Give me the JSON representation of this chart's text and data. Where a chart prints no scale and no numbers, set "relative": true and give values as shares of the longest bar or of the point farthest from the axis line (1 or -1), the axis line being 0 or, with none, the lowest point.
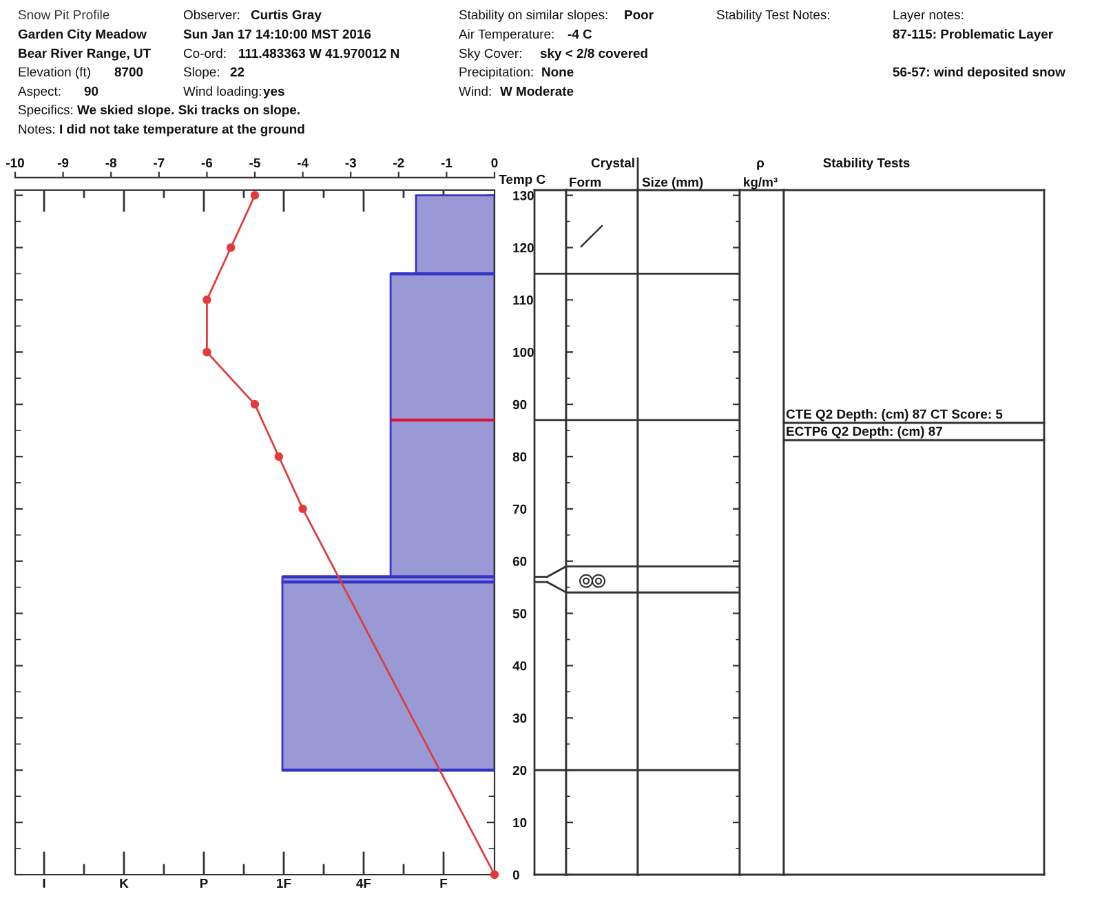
{
  "chart_data": [
    {
      "type": "other",
      "title": "Snow Pit Profile",
      "annotations": [
        "Observer:",
        "Curtis Gray",
        "Stability on similar slopes:",
        "Poor",
        "Stability Test Notes:",
        "Layer notes:",
        "Garden City Meadow",
        "Sun Jan 17 14:10:00 MST 2016",
        "Air Temperature:",
        "-4 C",
        "87-115: Problematic Layer",
        "Bear River Range, UT",
        "Co-ord:",
        "111.483363 W 41.970012 N",
        "Sky Cover:",
        "sky < 2/8 covered",
        "Elevation (ft)",
        "8700",
        "Slope:",
        "22",
        "Precipitation:",
        "None",
        "56-57: wind deposited snow",
        "Aspect:",
        "90",
        "Wind loading:",
        "yes",
        "Wind:",
        "W Moderate",
        "Specifics:",
        "We skied slope. Ski tracks on slope.",
        "Notes:",
        "I did not take temperature at the ground"
      ]
    },
    {
      "type": "bar",
      "orientation": "horizontal",
      "relative": true,
      "x": [
        38,
        56.5,
        86,
        122.5
      ],
      "values": [
        1.0,
        1.0,
        0.49,
        0.37
      ],
      "color": "#9999d5",
      "ylim": [
        0,
        131
      ],
      "yticks": [
        0,
        {
          "value": 5,
          "label": null
        },
        10,
        {
          "value": 15,
          "label": null
        },
        20,
        {
          "value": 25,
          "label": null
        },
        30,
        {
          "value": 35,
          "label": null
        },
        40,
        {
          "value": 45,
          "label": null
        },
        50,
        {
          "value": 55,
          "label": null
        },
        60,
        {
          "value": 65,
          "label": null
        },
        70,
        {
          "value": 75,
          "label": null
        },
        80,
        {
          "value": 85,
          "label": null
        },
        90,
        {
          "value": 95,
          "label": null
        },
        100,
        {
          "value": 105,
          "label": null
        },
        110,
        {
          "value": 115,
          "label": null
        },
        120,
        {
          "value": 125,
          "label": null
        },
        130
      ],
      "ref_lines": [
        {
          "axis": "y",
          "value": 115,
          "color": "#3434c8"
        },
        {
          "axis": "y",
          "value": 87,
          "color": "#e0103c"
        },
        {
          "axis": "y",
          "value": 57,
          "color": "#3434c8"
        },
        {
          "axis": "y",
          "value": 56,
          "color": "#3434c8"
        },
        {
          "axis": "y",
          "value": 20,
          "color": "#3434c8"
        }
      ],
      "annotations": [
        "I",
        "K",
        "P",
        "1F",
        "4F",
        "F"
      ]
    },
    {
      "type": "line",
      "x": [
        -5,
        -5.5,
        -6,
        -6,
        -5,
        -4.5,
        -4,
        0
      ],
      "values": [
        130,
        120,
        110,
        100,
        90,
        80,
        70,
        0
      ],
      "color": "#e03c3c",
      "marker": "circle",
      "xlim": [
        -10,
        0
      ],
      "xticks": [
        -10,
        -9,
        -8,
        -7,
        -6,
        -5,
        -4,
        -3,
        -2,
        -1,
        0
      ],
      "xlabel": "Temp C",
      "ylim": [
        0,
        131
      ],
      "tick_labels": "x"
    },
    {
      "type": "other",
      "annotations": [
        "Crystal",
        "Form",
        "Size (mm)",
        "ρ",
        "kg/m³",
        "Stability Tests",
        "CTE Q2 Depth: (cm) 87 CT Score: 5",
        "ECTP6 Q2 Depth: (cm) 87"
      ]
    }
  ]
}
